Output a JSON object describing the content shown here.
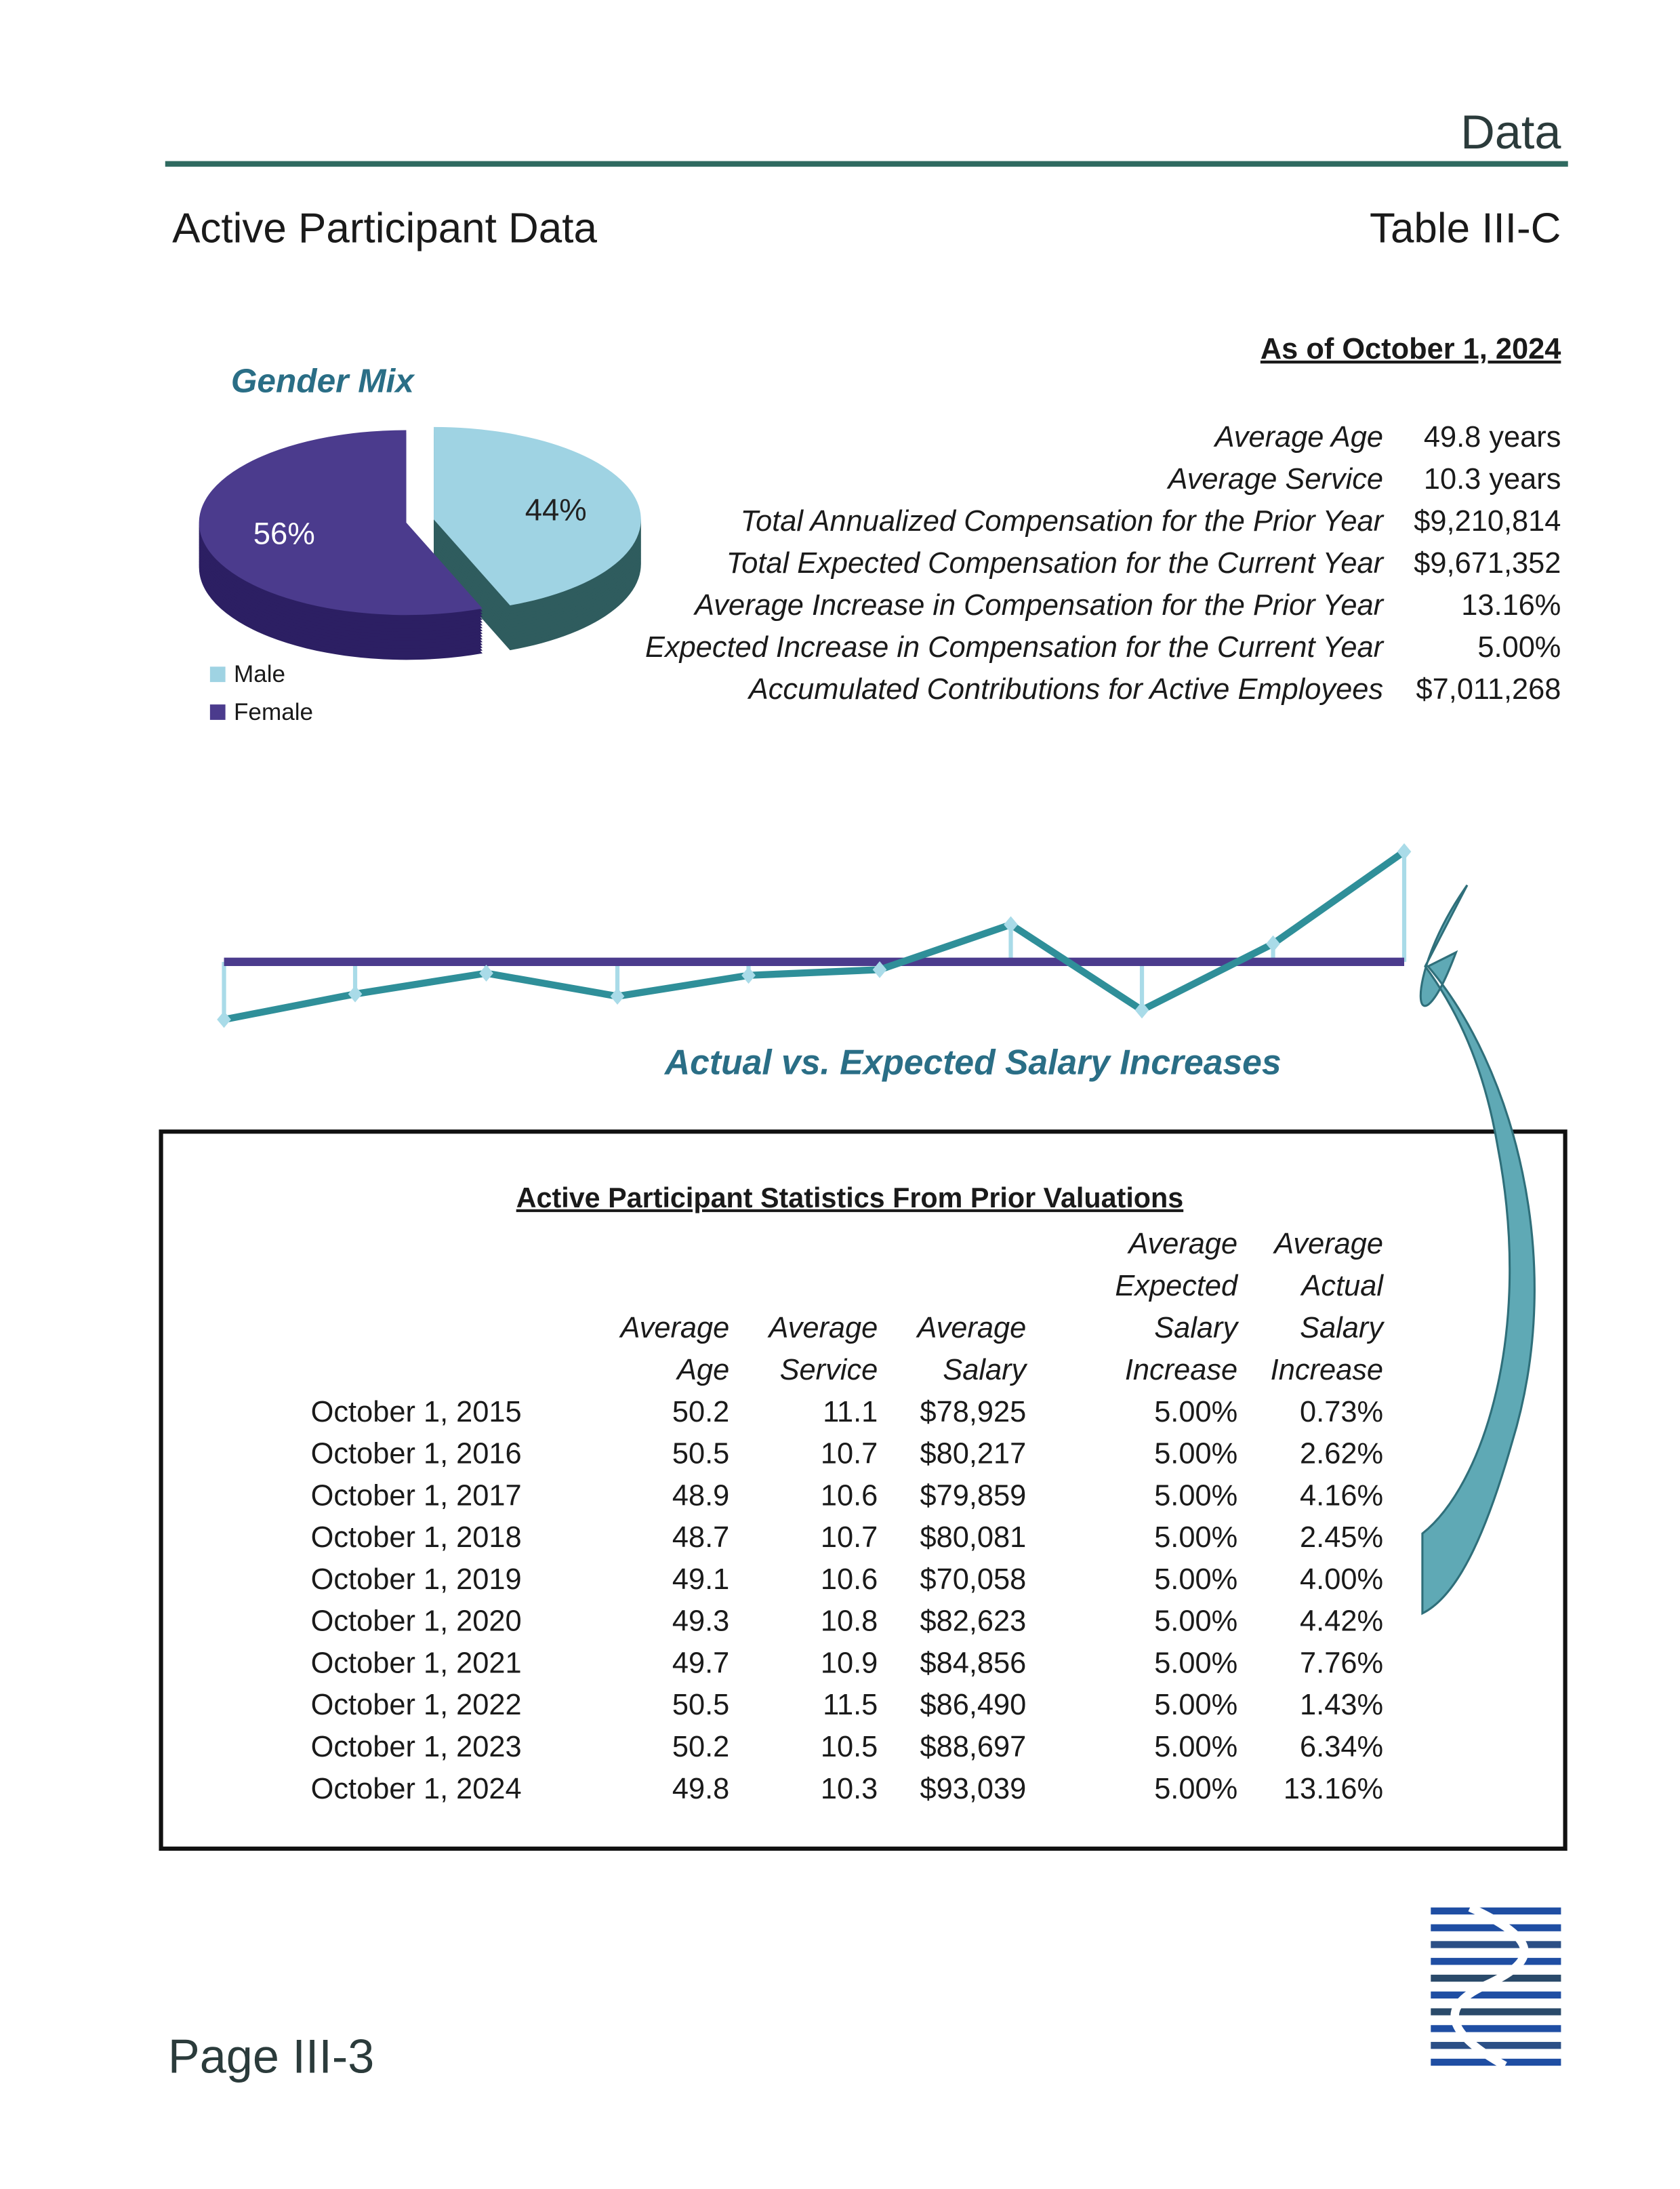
{
  "header": {
    "section": "Data",
    "title": "Active Participant Data",
    "table_id": "Table III-C"
  },
  "stats": {
    "as_of": "As of October 1, 2024",
    "rows": [
      [
        "Average Age",
        "49.8 years"
      ],
      [
        "Average Service",
        "10.3 years"
      ],
      [
        "Total Annualized Compensation for the Prior Year",
        "$9,210,814"
      ],
      [
        "Total Expected Compensation for the Current Year",
        "$9,671,352"
      ],
      [
        "Average Increase in Compensation for the Prior Year",
        "13.16%"
      ],
      [
        "Expected Increase in Compensation for the Current Year",
        "5.00%"
      ],
      [
        "Accumulated Contributions for Active Employees",
        "$7,011,268"
      ]
    ]
  },
  "chart_data": [
    {
      "type": "pie",
      "title": "Gender Mix",
      "categories": [
        "Male",
        "Female"
      ],
      "values": [
        44,
        56
      ],
      "value_labels": [
        "44%",
        "56%"
      ],
      "colors": [
        "#9fd3e3",
        "#4b3b8d"
      ]
    },
    {
      "type": "line",
      "title": "Actual vs. Expected Salary Increases",
      "ylim": [
        0,
        14
      ],
      "series": [
        {
          "color": "#4b3b8d",
          "values": [
            5,
            5,
            5,
            5,
            5,
            5,
            5,
            5,
            5,
            5
          ]
        },
        {
          "color": "#2f8f99",
          "values": [
            0.73,
            2.62,
            4.16,
            2.45,
            4.0,
            4.42,
            7.76,
            1.43,
            6.34,
            13.16
          ]
        }
      ]
    }
  ],
  "table": {
    "title": "Active Participant Statistics From Prior Valuations",
    "header": [
      [
        "Average",
        "Age"
      ],
      [
        "Average",
        "Service"
      ],
      [
        "Average",
        "Salary"
      ],
      [
        "Average",
        "Expected",
        "Salary",
        "Increase"
      ],
      [
        "Average",
        "Actual",
        "Salary",
        "Increase"
      ]
    ],
    "rows": [
      [
        "October 1, 2015",
        "50.2",
        "11.1",
        "$78,925",
        "5.00%",
        "0.73%"
      ],
      [
        "October 1, 2016",
        "50.5",
        "10.7",
        "$80,217",
        "5.00%",
        "2.62%"
      ],
      [
        "October 1, 2017",
        "48.9",
        "10.6",
        "$79,859",
        "5.00%",
        "4.16%"
      ],
      [
        "October 1, 2018",
        "48.7",
        "10.7",
        "$80,081",
        "5.00%",
        "2.45%"
      ],
      [
        "October 1, 2019",
        "49.1",
        "10.6",
        "$70,058",
        "5.00%",
        "4.00%"
      ],
      [
        "October 1, 2020",
        "49.3",
        "10.8",
        "$82,623",
        "5.00%",
        "4.42%"
      ],
      [
        "October 1, 2021",
        "49.7",
        "10.9",
        "$84,856",
        "5.00%",
        "7.76%"
      ],
      [
        "October 1, 2022",
        "50.5",
        "11.5",
        "$86,490",
        "5.00%",
        "1.43%"
      ],
      [
        "October 1, 2023",
        "50.2",
        "10.5",
        "$88,697",
        "5.00%",
        "6.34%"
      ],
      [
        "October 1, 2024",
        "49.8",
        "10.3",
        "$93,039",
        "5.00%",
        "13.16%"
      ]
    ]
  },
  "footer": {
    "page": "Page III-3"
  }
}
